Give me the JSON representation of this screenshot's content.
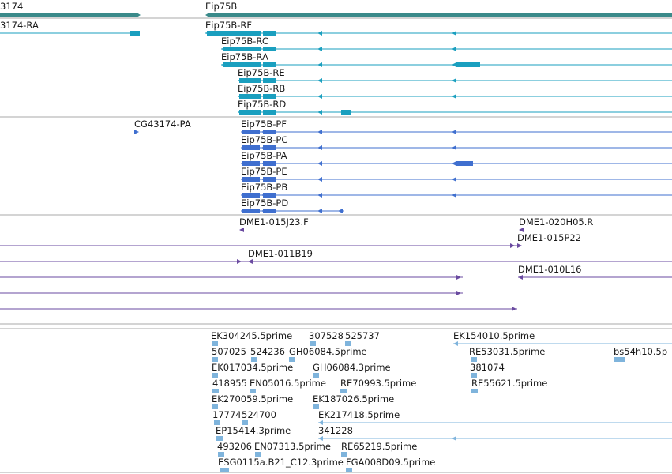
{
  "colors": {
    "gene": "#3a8a8a",
    "transcript": "#1a9fbf",
    "protein": "#3f6fcf",
    "clone": "#6a4aa0",
    "est": "#7fb4dc",
    "divider": "#aaaaaa"
  },
  "tracks": {
    "genes": [
      {
        "label": "3174"
      },
      {
        "label": "Eip75B"
      }
    ],
    "transcripts": [
      {
        "label": "3174-RA"
      },
      {
        "label": "Eip75B-RF"
      },
      {
        "label": "Eip75B-RC"
      },
      {
        "label": "Eip75B-RA"
      },
      {
        "label": "Eip75B-RE"
      },
      {
        "label": "Eip75B-RB"
      },
      {
        "label": "Eip75B-RD"
      }
    ],
    "proteins": [
      {
        "label": "CG43174-PA"
      },
      {
        "label": "Eip75B-PF"
      },
      {
        "label": "Eip75B-PC"
      },
      {
        "label": "Eip75B-PA"
      },
      {
        "label": "Eip75B-PE"
      },
      {
        "label": "Eip75B-PB"
      },
      {
        "label": "Eip75B-PD"
      }
    ],
    "clones": [
      {
        "label": "DME1-015J23.F"
      },
      {
        "label": "DME1-020H05.R"
      },
      {
        "label": "DME1-015P22"
      },
      {
        "label": "DME1-011B19"
      },
      {
        "label": "DME1-010L16"
      }
    ],
    "ests": [
      {
        "label": "EK304245.5prime"
      },
      {
        "label": "307528"
      },
      {
        "label": "525737"
      },
      {
        "label": "EK154010.5prime"
      },
      {
        "label": "507025"
      },
      {
        "label": "524236"
      },
      {
        "label": "GH06084.5prime"
      },
      {
        "label": "RE53031.5prime"
      },
      {
        "label": "bs54h10.5p"
      },
      {
        "label": "EK017034.5prime"
      },
      {
        "label": "GH06084.3prime"
      },
      {
        "label": "381074"
      },
      {
        "label": "418955"
      },
      {
        "label": "EN05016.5prime"
      },
      {
        "label": "RE70993.5prime"
      },
      {
        "label": "RE55621.5prime"
      },
      {
        "label": "EK270059.5prime"
      },
      {
        "label": "EK187026.5prime"
      },
      {
        "label": "17774"
      },
      {
        "label": "524700"
      },
      {
        "label": "EK217418.5prime"
      },
      {
        "label": "EP15414.3prime"
      },
      {
        "label": "341228"
      },
      {
        "label": "493206"
      },
      {
        "label": "EN07313.5prime"
      },
      {
        "label": "RE65219.5prime"
      },
      {
        "label": "ESG0115a.B21_C12.3prime"
      },
      {
        "label": "FGA008D09.5prime"
      }
    ]
  }
}
